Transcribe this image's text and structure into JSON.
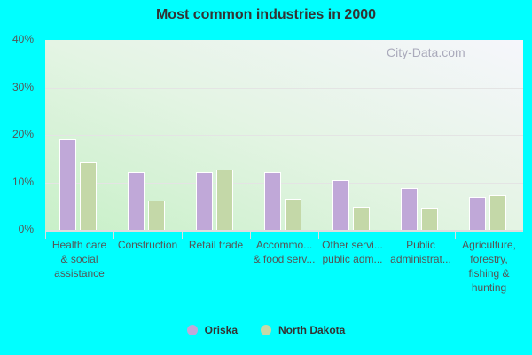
{
  "chart_data": {
    "type": "bar",
    "title": "Most common industries in 2000",
    "xlabel": "",
    "ylabel": "",
    "ylim": [
      0,
      40
    ],
    "yticks": [
      "0%",
      "10%",
      "20%",
      "30%",
      "40%"
    ],
    "categories": [
      "Health care & social assistance",
      "Construction",
      "Retail trade",
      "Accommo... & food serv...",
      "Other servi... public adm...",
      "Public administrat...",
      "Agriculture, forestry, fishing & hunting"
    ],
    "series": [
      {
        "name": "Oriska",
        "color": "#c0a8d8",
        "values": [
          19.0,
          12.1,
          12.1,
          12.1,
          10.4,
          8.7,
          7.0
        ]
      },
      {
        "name": "North Dakota",
        "color": "#c4d8a8",
        "values": [
          14.3,
          6.2,
          12.8,
          6.6,
          4.9,
          4.7,
          7.2
        ]
      }
    ],
    "legend_position": "bottom",
    "grid": true
  },
  "watermark": "City-Data.com"
}
